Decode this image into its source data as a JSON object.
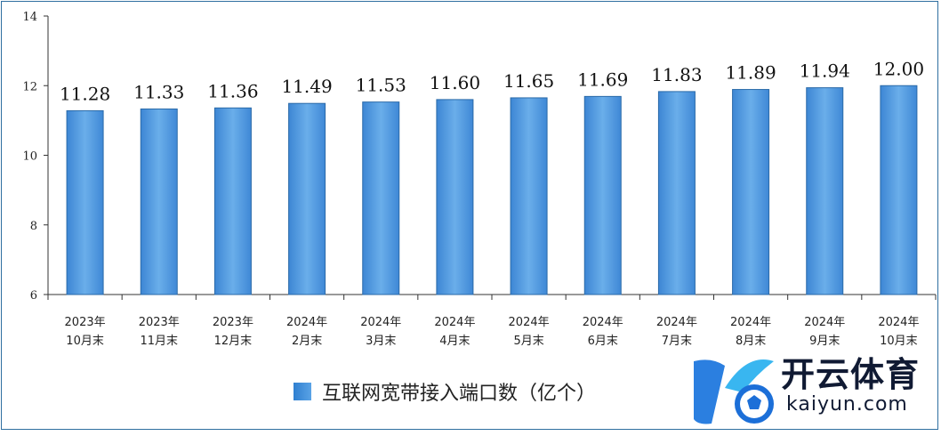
{
  "chart_data": {
    "type": "bar",
    "categories": [
      [
        "2023年",
        "10月末"
      ],
      [
        "2023年",
        "11月末"
      ],
      [
        "2023年",
        "12月末"
      ],
      [
        "2024年",
        "2月末"
      ],
      [
        "2024年",
        "3月末"
      ],
      [
        "2024年",
        "4月末"
      ],
      [
        "2024年",
        "5月末"
      ],
      [
        "2024年",
        "6月末"
      ],
      [
        "2024年",
        "7月末"
      ],
      [
        "2024年",
        "8月末"
      ],
      [
        "2024年",
        "9月末"
      ],
      [
        "2024年",
        "10月末"
      ]
    ],
    "values": [
      11.28,
      11.33,
      11.36,
      11.49,
      11.53,
      11.6,
      11.65,
      11.69,
      11.83,
      11.89,
      11.94,
      12.0
    ],
    "data_labels": [
      "11.28",
      "11.33",
      "11.36",
      "11.49",
      "11.53",
      "11.60",
      "11.65",
      "11.69",
      "11.83",
      "11.89",
      "11.94",
      "12.00"
    ],
    "series": [
      {
        "name": "互联网宽带接入端口数（亿个）"
      }
    ],
    "ylim": [
      6,
      14
    ],
    "yticks": [
      6,
      8,
      10,
      12,
      14
    ],
    "grid": false,
    "legend_position": "bottom",
    "bar_color": "#5b9fe0",
    "bar_edge_color": "#2a6aa8"
  },
  "legend": {
    "label": "互联网宽带接入端口数（亿个）"
  },
  "watermark": {
    "text_cn": "开云体育",
    "text_en": "kaiyun.com"
  }
}
